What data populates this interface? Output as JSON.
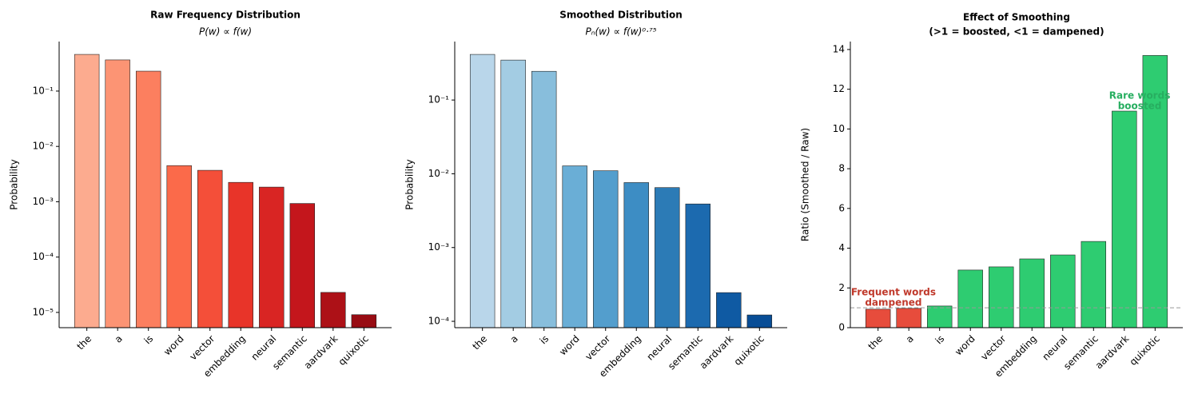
{
  "chart_data": [
    {
      "type": "bar",
      "title": "Raw Frequency Distribution",
      "subtitle": "P(w) ∝ f(w)",
      "ylabel": "Probability",
      "log_scale": true,
      "categories": [
        "the",
        "a",
        "is",
        "word",
        "vector",
        "embedding",
        "neural",
        "semantic",
        "aardvark",
        "quixotic"
      ],
      "values": [
        0.46,
        0.366,
        0.229,
        0.0045,
        0.0037,
        0.00224,
        0.00184,
        0.00093,
        2.3e-05,
        9.1e-06
      ],
      "colors": [
        "#fcab8f",
        "#fc9474",
        "#fc7f5f",
        "#fb6a4a",
        "#f44f39",
        "#e83429",
        "#d92523",
        "#c4161c",
        "#ad1117",
        "#980c13"
      ],
      "ylim": [
        5.3e-06,
        0.785
      ],
      "yticks": [
        {
          "value": 1e-05,
          "label": "10⁻⁵"
        },
        {
          "value": 0.0001,
          "label": "10⁻⁴"
        },
        {
          "value": 0.001,
          "label": "10⁻³"
        },
        {
          "value": 0.01,
          "label": "10⁻²"
        },
        {
          "value": 0.1,
          "label": "10⁻¹"
        }
      ]
    },
    {
      "type": "bar",
      "title": "Smoothed Distribution",
      "subtitle": "Pₙ(w) ∝ f(w)⁰·⁷⁵",
      "ylabel": "Probability",
      "log_scale": true,
      "categories": [
        "the",
        "a",
        "is",
        "word",
        "vector",
        "embedding",
        "neural",
        "semantic",
        "aardvark",
        "quixotic"
      ],
      "values": [
        0.415,
        0.348,
        0.245,
        0.0128,
        0.011,
        0.0076,
        0.0065,
        0.0039,
        0.000245,
        0.000122
      ],
      "colors": [
        "#b9d6ea",
        "#a3cce3",
        "#88bedc",
        "#6aaed6",
        "#539ecd",
        "#3d8dc4",
        "#2c7bb6",
        "#1c6aaf",
        "#0f5aa3",
        "#084d96"
      ],
      "ylim": [
        8.2e-05,
        0.62
      ],
      "yticks": [
        {
          "value": 0.0001,
          "label": "10⁻⁴"
        },
        {
          "value": 0.001,
          "label": "10⁻³"
        },
        {
          "value": 0.01,
          "label": "10⁻²"
        },
        {
          "value": 0.1,
          "label": "10⁻¹"
        }
      ]
    },
    {
      "type": "bar",
      "title": "Effect of Smoothing",
      "subtitle": "(>1 = boosted, <1 = dampened)",
      "ylabel": "Ratio (Smoothed / Raw)",
      "log_scale": false,
      "categories": [
        "the",
        "a",
        "is",
        "word",
        "vector",
        "embedding",
        "neural",
        "semantic",
        "aardvark",
        "quixotic"
      ],
      "values": [
        0.93,
        0.97,
        1.09,
        2.9,
        3.06,
        3.46,
        3.66,
        4.34,
        10.9,
        13.7
      ],
      "colors": [
        "#e74c3c",
        "#e74c3c",
        "#2ecc71",
        "#2ecc71",
        "#2ecc71",
        "#2ecc71",
        "#2ecc71",
        "#2ecc71",
        "#2ecc71",
        "#2ecc71"
      ],
      "ylim": [
        0,
        14.4
      ],
      "yticks": [
        0,
        2,
        4,
        6,
        8,
        10,
        12,
        14
      ],
      "reference_line": 1,
      "annotations": [
        {
          "lines": [
            "Frequent words",
            "dampened"
          ],
          "color": "#c0392b"
        },
        {
          "lines": [
            "Rare words",
            "boosted"
          ],
          "color": "#27ae60"
        }
      ]
    }
  ]
}
